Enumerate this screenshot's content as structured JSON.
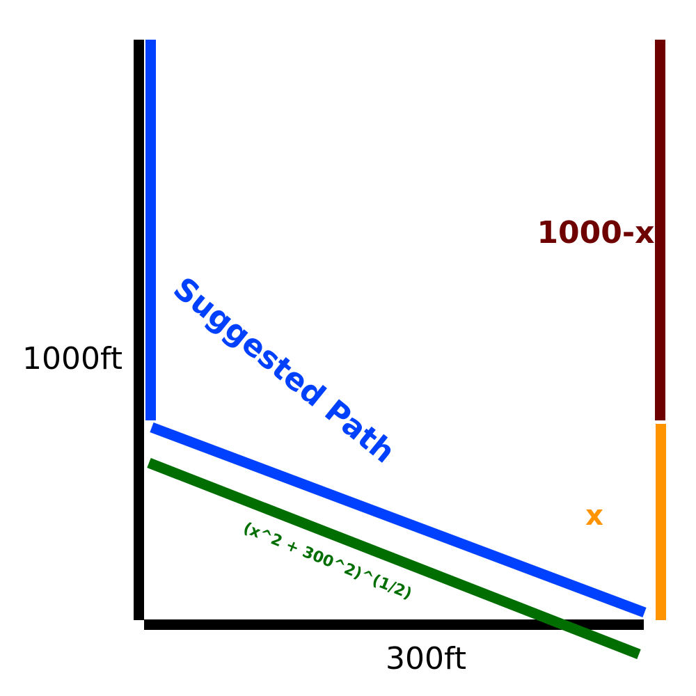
{
  "labels": {
    "height": "1000ft",
    "width": "300ft",
    "upper_segment": "1000-x",
    "lower_segment": "x",
    "suggested_path": "Suggested Path",
    "hypotenuse_formula": "(x^2 + 300^2)^(1/2)"
  },
  "colors": {
    "frame": "#000000",
    "suggested_path": "#0040ff",
    "alternate_path": "#006e00",
    "upper_segment": "#6e0000",
    "lower_segment": "#ff9400",
    "background": "#ffffff"
  }
}
